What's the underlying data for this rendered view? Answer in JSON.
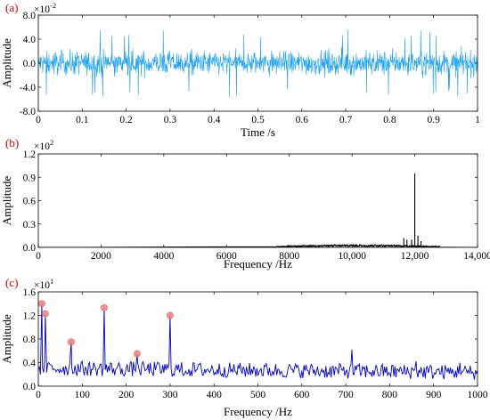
{
  "chart_data": [
    {
      "panel": "(a)",
      "type": "line",
      "xlabel": "Time /s",
      "ylabel": "Amplitude",
      "multiplier": {
        "base": "×10",
        "exp": "-2"
      },
      "xlim": [
        0,
        1
      ],
      "ylim": [
        -8.0,
        8.0
      ],
      "x_ticks": [
        0,
        0.1,
        0.2,
        0.3,
        0.4,
        0.5,
        0.6,
        0.7,
        0.8,
        0.9,
        1
      ],
      "x_tick_labels": [
        "0",
        "0.1",
        "0.2",
        "0.3",
        "0.4",
        "0.5",
        "0.6",
        "0.7",
        "0.8",
        "0.9",
        "1"
      ],
      "y_ticks": [
        -8,
        -4,
        0,
        4,
        8
      ],
      "y_tick_labels": [
        "-8.0",
        "-4.0",
        "0.0",
        "4.0",
        "8.0"
      ],
      "color": "#1ea1f0",
      "signal": {
        "kind": "noise",
        "typical_amplitude": 1.6,
        "peak_amplitude": 5.8,
        "n_points": 1200
      }
    },
    {
      "panel": "(b)",
      "type": "line",
      "xlabel": "Frequency /Hz",
      "ylabel": "Amplitude",
      "multiplier": {
        "base": "×10",
        "exp": "2"
      },
      "xlim": [
        0,
        14000
      ],
      "ylim": [
        0,
        1.2
      ],
      "x_ticks": [
        0,
        2000,
        4000,
        6000,
        8000,
        10000,
        12000,
        14000
      ],
      "x_tick_labels": [
        "0",
        "2000",
        "4000",
        "6000",
        "8000",
        "10,000",
        "12,000",
        "14,000"
      ],
      "y_ticks": [
        0,
        0.3,
        0.6,
        0.9,
        1.2
      ],
      "y_tick_labels": [
        "0.0",
        "0.3",
        "0.6",
        "0.9",
        "1.2"
      ],
      "color": "#000000",
      "band": {
        "start": 7600,
        "end": 12800,
        "level": 0.03
      },
      "peaks": [
        {
          "x": 11650,
          "y": 0.12
        },
        {
          "x": 11750,
          "y": 0.1
        },
        {
          "x": 11900,
          "y": 0.1
        },
        {
          "x": 12000,
          "y": 0.95
        },
        {
          "x": 12100,
          "y": 0.15
        },
        {
          "x": 12200,
          "y": 0.08
        }
      ]
    },
    {
      "panel": "(c)",
      "type": "line",
      "xlabel": "Frequency /Hz",
      "ylabel": "Amplitude",
      "multiplier": {
        "base": "×10",
        "exp": "1"
      },
      "xlim": [
        0,
        1000
      ],
      "ylim": [
        0,
        1.6
      ],
      "x_ticks": [
        0,
        100,
        200,
        300,
        400,
        500,
        600,
        700,
        800,
        900,
        1000
      ],
      "x_tick_labels": [
        "0",
        "100",
        "200",
        "300",
        "400",
        "500",
        "600",
        "700",
        "800",
        "900",
        "1000"
      ],
      "y_ticks": [
        0,
        0.4,
        0.8,
        1.2,
        1.6
      ],
      "y_tick_labels": [
        "0.0",
        "0.4",
        "0.8",
        "1.2",
        "1.6"
      ],
      "color": "#0000cc",
      "marker_color": "#f08080",
      "baseline": {
        "mean": 0.28,
        "spread": 0.16
      },
      "spikes": [
        {
          "x": 714,
          "y": 0.62
        },
        {
          "x": 960,
          "y": 0.4
        },
        {
          "x": 860,
          "y": 0.42
        }
      ],
      "marked_peaks": [
        {
          "x": 8,
          "y": 1.4
        },
        {
          "x": 16,
          "y": 1.23
        },
        {
          "x": 75,
          "y": 0.75
        },
        {
          "x": 150,
          "y": 1.33
        },
        {
          "x": 225,
          "y": 0.55
        },
        {
          "x": 300,
          "y": 1.2
        }
      ]
    }
  ]
}
